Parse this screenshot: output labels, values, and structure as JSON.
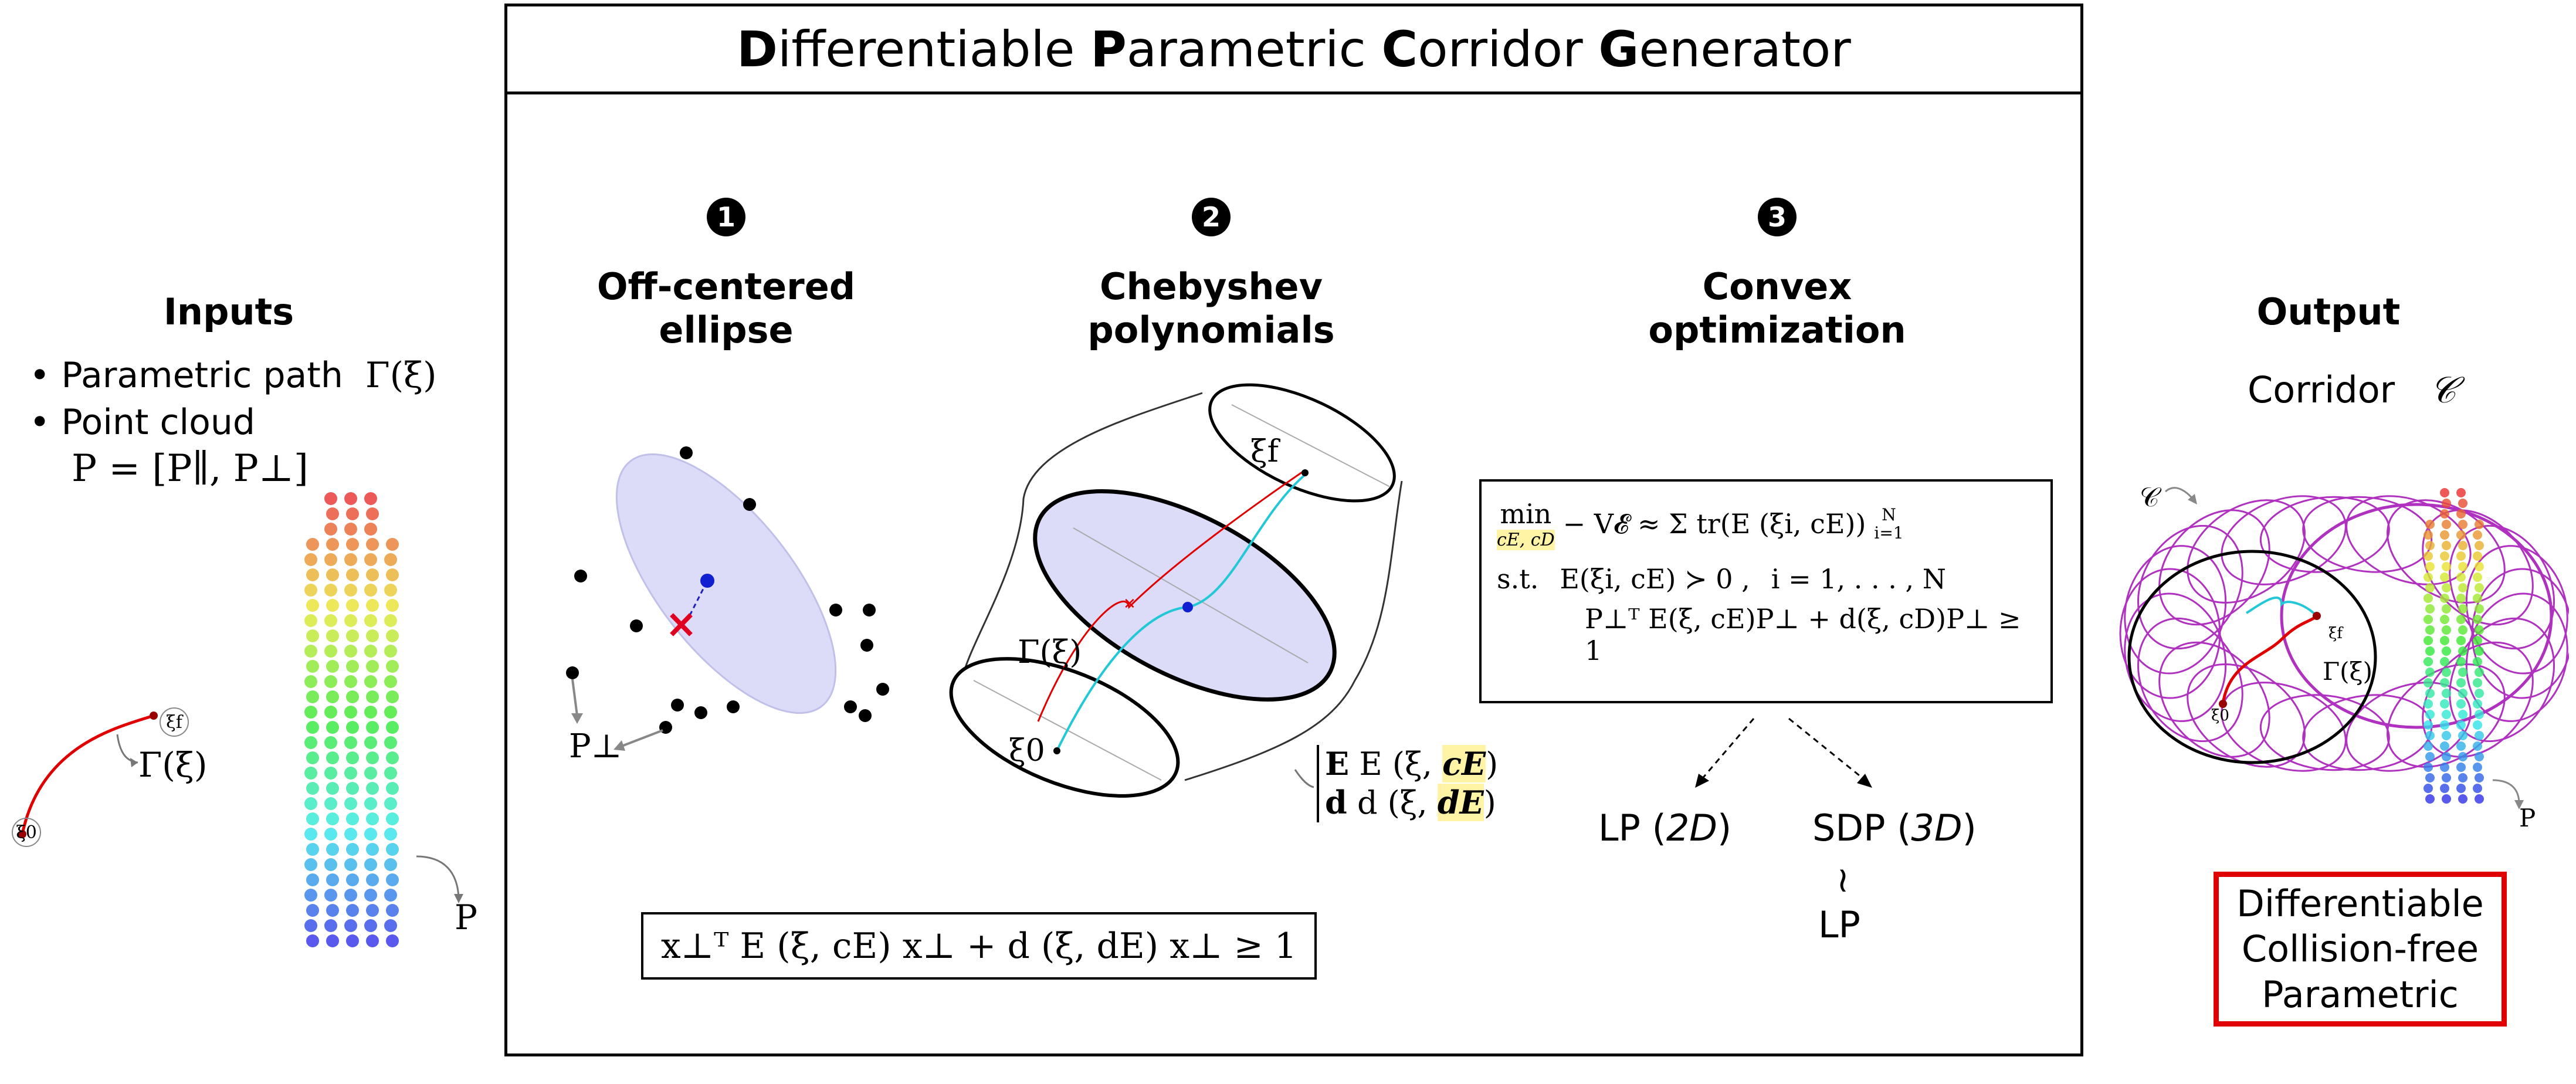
{
  "title": {
    "parts": [
      {
        "initial": "D",
        "rest": "ifferentiable "
      },
      {
        "initial": "P",
        "rest": "arametric "
      },
      {
        "initial": "C",
        "rest": "orridor "
      },
      {
        "initial": "G",
        "rest": "enerator"
      }
    ]
  },
  "inputs": {
    "heading": "Inputs",
    "items": [
      {
        "text": "Parametric path",
        "math": "Γ(ξ)"
      },
      {
        "text": "Point cloud",
        "math": ""
      }
    ],
    "point_cloud_eq": "P = [P∥, P⊥]",
    "path_label": "Γ(ξ)",
    "xi0": "ξ0",
    "xif": "ξf",
    "p_label": "P"
  },
  "steps": [
    {
      "number": "1",
      "heading_line1": "Off-centered",
      "heading_line2": "ellipse"
    },
    {
      "number": "2",
      "heading_line1": "Chebyshev",
      "heading_line2": "polynomials"
    },
    {
      "number": "3",
      "heading_line1": "Convex",
      "heading_line2": "optimization"
    }
  ],
  "ellipse": {
    "p_perp": "P⊥"
  },
  "chebyshev": {
    "gamma": "Γ(ξ)",
    "xi0": "ξ0",
    "xif": "ξf",
    "E_label_pre": "E (ξ, ",
    "E_label_hl": "cE",
    "E_label_post": ")",
    "d_label_pre": "d (ξ, ",
    "d_label_hl": "dE",
    "d_label_post": ")"
  },
  "constraint_eq": "x⊥ᵀ E (ξ, cE) x⊥ + d (ξ, dE) x⊥ ≥ 1",
  "optimization": {
    "min_label": "min",
    "min_sub": "cE, cD",
    "objective": "− V𝓔 ≈ Σ tr(E (ξi, cE))",
    "sum_top": "N",
    "sum_bottom": "i=1",
    "st_label": "s.t.",
    "c1": "E(ξi, cE) ≻ 0 ,",
    "c1_range": "i = 1, . . . , N",
    "c2": "P⊥ᵀ E(ξ, cE)P⊥ + d(ξ, cD)P⊥ ≥ 1"
  },
  "outcomes": {
    "lp_prefix": "LP (",
    "lp_dim": "2D",
    "sdp_prefix": "SDP (",
    "sdp_dim": "3D",
    "close": ")",
    "approx": "≀",
    "lp2": "LP"
  },
  "output": {
    "heading": "Output",
    "corridor_text": "Corridor",
    "corridor_symbol": "𝒞",
    "c_label": "𝒞",
    "gamma": "Γ(ξ)",
    "xi0": "ξ0",
    "xif": "ξf",
    "p_label": "P",
    "properties": [
      "Differentiable",
      "Collision-free",
      "Parametric"
    ]
  },
  "colors": {
    "accent_red": "#e00000",
    "ellipse_fill": "#dcdcf8",
    "highlight": "#fff3a6",
    "magenta": "#b030c0",
    "cyan": "#22c8d8"
  }
}
